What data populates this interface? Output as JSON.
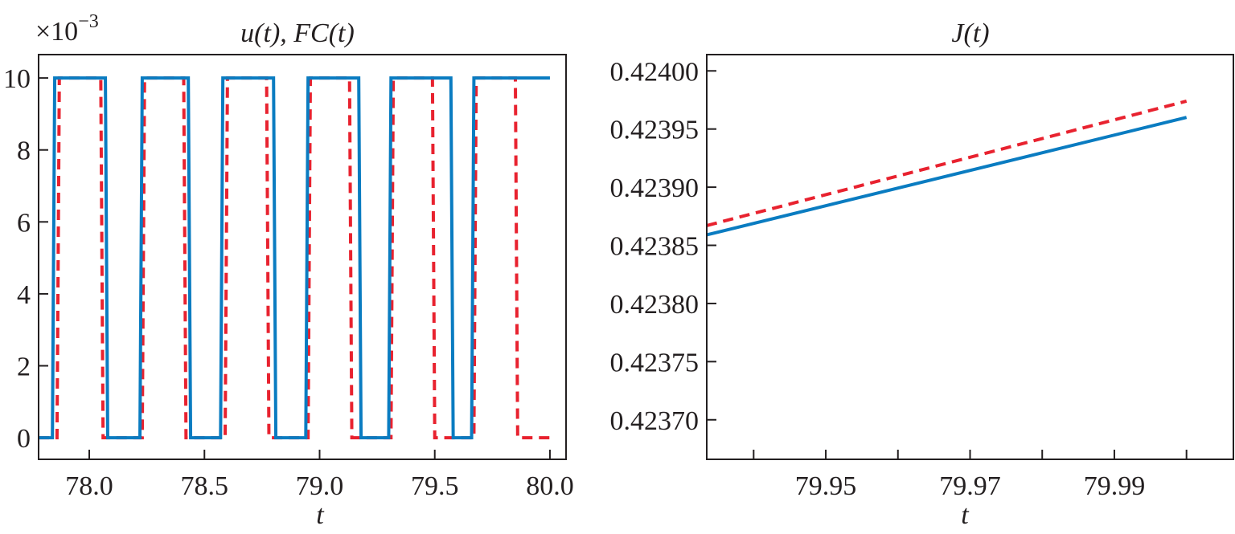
{
  "colors": {
    "series_u": "#0a7cc1",
    "series_fc": "#e8222f",
    "axis": "#231f20",
    "background": "#ffffff"
  },
  "chart_data": [
    {
      "type": "line",
      "title": "u(t), FC(t)",
      "xlabel": "t",
      "ylabel": "",
      "y_multiplier_label": "×10",
      "y_multiplier_exponent": "−3",
      "xlim": [
        77.78,
        80.07
      ],
      "ylim": [
        -0.6,
        10.65
      ],
      "xticks": [
        78.0,
        78.5,
        79.0,
        79.5,
        80.0
      ],
      "xtick_labels": [
        "78.0",
        "78.5",
        "79.0",
        "79.5",
        "80.0"
      ],
      "yticks": [
        0,
        2,
        4,
        6,
        8,
        10
      ],
      "ytick_labels": [
        "0",
        "2",
        "4",
        "6",
        "8",
        "10"
      ],
      "series": [
        {
          "name": "u(t)",
          "style": "solid",
          "x": [
            77.78,
            77.84,
            77.85,
            78.07,
            78.08,
            78.22,
            78.23,
            78.43,
            78.44,
            78.57,
            78.58,
            78.8,
            78.81,
            78.94,
            78.95,
            79.17,
            79.18,
            79.3,
            79.31,
            79.57,
            79.58,
            79.66,
            79.67,
            80.0
          ],
          "y": [
            0,
            0,
            10,
            10,
            0,
            0,
            10,
            10,
            0,
            0,
            10,
            10,
            0,
            0,
            10,
            10,
            0,
            0,
            10,
            10,
            0,
            0,
            10,
            10
          ]
        },
        {
          "name": "FC(t)",
          "style": "dashed",
          "x": [
            77.78,
            77.86,
            77.87,
            78.05,
            78.06,
            78.23,
            78.24,
            78.41,
            78.42,
            78.59,
            78.6,
            78.77,
            78.78,
            78.95,
            78.96,
            79.13,
            79.14,
            79.31,
            79.32,
            79.49,
            79.5,
            79.67,
            79.68,
            79.85,
            79.86,
            80.0
          ],
          "y": [
            0,
            0,
            10,
            10,
            0,
            0,
            10,
            10,
            0,
            0,
            10,
            10,
            0,
            0,
            10,
            10,
            0,
            0,
            10,
            10,
            0,
            0,
            10,
            10,
            0,
            0
          ]
        }
      ]
    },
    {
      "type": "line",
      "title": "J(t)",
      "xlabel": "t",
      "ylabel": "",
      "xlim": [
        79.9335,
        80.0065
      ],
      "ylim": [
        0.423666,
        0.424014
      ],
      "xticks": [
        79.94,
        79.95,
        79.96,
        79.97,
        79.98,
        79.99,
        80.0
      ],
      "xtick_labels": [
        "",
        "79.95",
        "",
        "79.97",
        "",
        "79.99",
        ""
      ],
      "yticks": [
        0.4237,
        0.42375,
        0.4238,
        0.42385,
        0.4239,
        0.42395,
        0.424
      ],
      "ytick_labels": [
        "0.42370",
        "0.42375",
        "0.42380",
        "0.42385",
        "0.42390",
        "0.42395",
        "0.42400"
      ],
      "series": [
        {
          "name": "J(t) solid",
          "style": "solid",
          "x": [
            79.9335,
            80.0
          ],
          "y": [
            0.423859,
            0.42396
          ]
        },
        {
          "name": "J(t) dashed",
          "style": "dashed",
          "x": [
            79.9335,
            80.0
          ],
          "y": [
            0.423867,
            0.423974
          ]
        }
      ]
    }
  ]
}
